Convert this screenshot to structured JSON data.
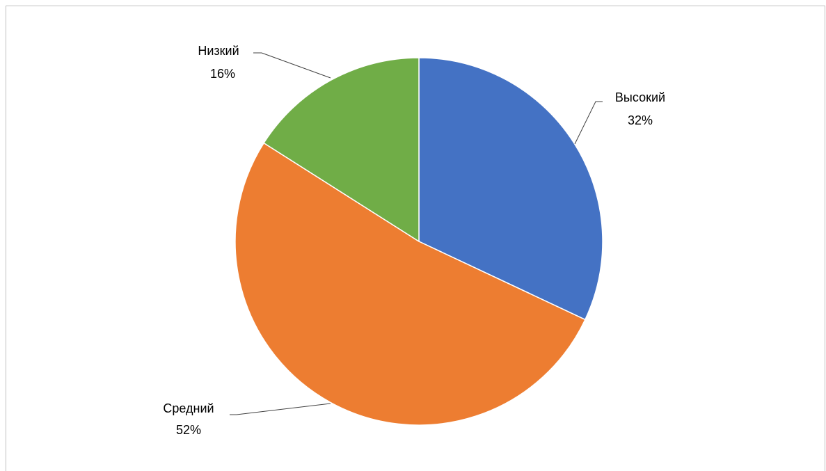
{
  "chart_data": {
    "type": "pie",
    "title": "",
    "slices": [
      {
        "label": "Высокий",
        "value": 32,
        "value_label": "32%",
        "color": "#4472C4"
      },
      {
        "label": "Средний",
        "value": 52,
        "value_label": "52%",
        "color": "#ED7D31"
      },
      {
        "label": "Низкий",
        "value": 16,
        "value_label": "16%",
        "color": "#70AD47"
      }
    ],
    "start_angle_deg": 0,
    "direction": "clockwise",
    "legend": "none",
    "data_labels": "outside-with-leader-lines"
  }
}
